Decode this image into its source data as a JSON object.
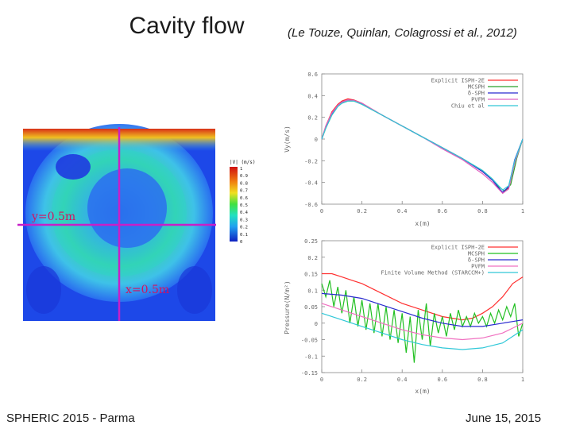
{
  "slide": {
    "title": "Cavity flow",
    "citation": "(Le Touze, Quinlan, Colagrossi et al., 2012)",
    "footer_left": "SPHERIC 2015 - Parma",
    "footer_right": "June 15, 2015"
  },
  "cavity_image": {
    "line_h_label": "y=0.5m",
    "line_v_label": "x=0.5m",
    "colorbar_title": "|V| (m/s)",
    "colorbar_ticks": [
      "1",
      "0.9",
      "0.8",
      "0.7",
      "0.6",
      "0.5",
      "0.4",
      "0.3",
      "0.2",
      "0.1",
      "0"
    ],
    "colors": {
      "line": "#c81fc8",
      "label": "#d4135f"
    }
  },
  "chart_data": [
    {
      "type": "line",
      "xlabel": "x(m)",
      "ylabel": "Vy(m/s)",
      "xlim": [
        0,
        1
      ],
      "ylim": [
        -0.6,
        0.6
      ],
      "x_ticks": [
        "0",
        "0.2",
        "0.4",
        "0.6",
        "0.8",
        "1"
      ],
      "y_ticks": [
        "0.6",
        "0.4",
        "0.2",
        "0",
        "-0.2",
        "-0.4",
        "-0.6"
      ],
      "legend_position": "top-right",
      "series": [
        {
          "name": "Explicit ISPH-2E",
          "color": "#ff3030",
          "x": [
            0,
            0.02,
            0.05,
            0.08,
            0.1,
            0.13,
            0.16,
            0.2,
            0.3,
            0.4,
            0.5,
            0.6,
            0.7,
            0.8,
            0.85,
            0.88,
            0.9,
            0.93,
            0.96,
            1
          ],
          "y": [
            0,
            0.12,
            0.25,
            0.32,
            0.35,
            0.37,
            0.36,
            0.33,
            0.22,
            0.12,
            0.02,
            -0.08,
            -0.18,
            -0.3,
            -0.38,
            -0.45,
            -0.5,
            -0.45,
            -0.2,
            0
          ]
        },
        {
          "name": "MCSPH",
          "color": "#2aa02a",
          "x": [
            0,
            0.02,
            0.05,
            0.08,
            0.1,
            0.13,
            0.16,
            0.2,
            0.3,
            0.4,
            0.5,
            0.6,
            0.7,
            0.8,
            0.85,
            0.88,
            0.91,
            0.94,
            0.97,
            1
          ],
          "y": [
            0,
            0.1,
            0.22,
            0.3,
            0.33,
            0.35,
            0.35,
            0.32,
            0.22,
            0.12,
            0.02,
            -0.08,
            -0.18,
            -0.29,
            -0.37,
            -0.44,
            -0.48,
            -0.42,
            -0.18,
            0
          ]
        },
        {
          "name": "δ-SPH",
          "color": "#2a2ad0",
          "x": [
            0,
            0.02,
            0.05,
            0.08,
            0.1,
            0.13,
            0.16,
            0.2,
            0.3,
            0.4,
            0.5,
            0.6,
            0.7,
            0.8,
            0.85,
            0.88,
            0.9,
            0.93,
            0.96,
            1
          ],
          "y": [
            0,
            0.11,
            0.23,
            0.31,
            0.34,
            0.36,
            0.355,
            0.325,
            0.22,
            0.12,
            0.02,
            -0.08,
            -0.18,
            -0.3,
            -0.38,
            -0.45,
            -0.49,
            -0.44,
            -0.19,
            0
          ]
        },
        {
          "name": "PVFM",
          "color": "#e060c0",
          "x": [
            0,
            0.02,
            0.05,
            0.08,
            0.1,
            0.13,
            0.16,
            0.2,
            0.3,
            0.4,
            0.5,
            0.6,
            0.7,
            0.8,
            0.85,
            0.88,
            0.9,
            0.93,
            0.96,
            1
          ],
          "y": [
            0,
            0.12,
            0.24,
            0.31,
            0.34,
            0.36,
            0.355,
            0.33,
            0.22,
            0.12,
            0.02,
            -0.09,
            -0.19,
            -0.32,
            -0.4,
            -0.46,
            -0.5,
            -0.46,
            -0.22,
            0
          ]
        },
        {
          "name": "Chiu et al",
          "color": "#30c8d8",
          "x": [
            0,
            0.02,
            0.05,
            0.08,
            0.1,
            0.13,
            0.16,
            0.2,
            0.3,
            0.4,
            0.5,
            0.6,
            0.7,
            0.8,
            0.85,
            0.88,
            0.9,
            0.93,
            0.96,
            1
          ],
          "y": [
            0,
            0.1,
            0.22,
            0.3,
            0.33,
            0.35,
            0.35,
            0.32,
            0.22,
            0.12,
            0.02,
            -0.08,
            -0.18,
            -0.29,
            -0.37,
            -0.43,
            -0.47,
            -0.43,
            -0.2,
            0
          ]
        }
      ]
    },
    {
      "type": "line",
      "xlabel": "x(m)",
      "ylabel": "Pressure(N/m²)",
      "xlim": [
        0,
        1
      ],
      "ylim": [
        -0.15,
        0.25
      ],
      "x_ticks": [
        "0",
        "0.2",
        "0.4",
        "0.6",
        "0.8",
        "1"
      ],
      "y_ticks": [
        "0.25",
        "0.2",
        "0.15",
        "0.1",
        "0.05",
        "0",
        "-0.05",
        "-0.1",
        "-0.15"
      ],
      "legend_position": "top-right",
      "series": [
        {
          "name": "Explicit ISPH-2E",
          "color": "#ff3030",
          "x": [
            0,
            0.05,
            0.1,
            0.15,
            0.2,
            0.3,
            0.4,
            0.5,
            0.6,
            0.7,
            0.75,
            0.8,
            0.85,
            0.9,
            0.95,
            1
          ],
          "y": [
            0.15,
            0.15,
            0.14,
            0.13,
            0.12,
            0.09,
            0.06,
            0.04,
            0.02,
            0.01,
            0.015,
            0.03,
            0.05,
            0.08,
            0.12,
            0.14
          ]
        },
        {
          "name": "MCSPH",
          "color": "#22c022",
          "x": [
            0,
            0.02,
            0.04,
            0.06,
            0.08,
            0.1,
            0.12,
            0.14,
            0.16,
            0.18,
            0.2,
            0.22,
            0.24,
            0.26,
            0.28,
            0.3,
            0.32,
            0.34,
            0.36,
            0.38,
            0.4,
            0.42,
            0.44,
            0.46,
            0.48,
            0.5,
            0.52,
            0.54,
            0.56,
            0.58,
            0.6,
            0.62,
            0.64,
            0.66,
            0.68,
            0.7,
            0.72,
            0.74,
            0.76,
            0.78,
            0.8,
            0.82,
            0.84,
            0.86,
            0.88,
            0.9,
            0.92,
            0.94,
            0.96,
            0.98,
            1
          ],
          "y": [
            0.12,
            0.08,
            0.13,
            0.05,
            0.11,
            0.03,
            0.1,
            0.0,
            0.08,
            -0.01,
            0.07,
            -0.02,
            0.06,
            -0.03,
            0.06,
            -0.04,
            0.05,
            -0.05,
            0.04,
            -0.06,
            0.03,
            -0.09,
            0.02,
            -0.12,
            0.04,
            -0.05,
            0.06,
            -0.07,
            0.03,
            -0.03,
            0.02,
            -0.04,
            0.03,
            -0.02,
            0.04,
            -0.01,
            0.02,
            -0.01,
            0.03,
            0.0,
            0.02,
            -0.01,
            0.03,
            0.0,
            0.04,
            0.01,
            0.05,
            0.02,
            0.06,
            -0.04,
            0.0
          ]
        },
        {
          "name": "δ-SPH",
          "color": "#2a2ad0",
          "x": [
            0,
            0.1,
            0.2,
            0.3,
            0.4,
            0.5,
            0.6,
            0.7,
            0.8,
            0.9,
            0.95,
            1
          ],
          "y": [
            0.09,
            0.085,
            0.075,
            0.055,
            0.035,
            0.015,
            0.0,
            -0.01,
            -0.01,
            0.0,
            0.005,
            0.01
          ]
        },
        {
          "name": "PVFM",
          "color": "#f070c0",
          "x": [
            0,
            0.1,
            0.2,
            0.3,
            0.4,
            0.5,
            0.6,
            0.7,
            0.8,
            0.9,
            0.95,
            1
          ],
          "y": [
            0.06,
            0.04,
            0.02,
            0.0,
            -0.02,
            -0.035,
            -0.045,
            -0.05,
            -0.045,
            -0.03,
            -0.015,
            0.0
          ]
        },
        {
          "name": "Finite Volume Method (STARCCM+)",
          "color": "#30c8d8",
          "x": [
            0,
            0.1,
            0.2,
            0.3,
            0.4,
            0.5,
            0.6,
            0.7,
            0.8,
            0.9,
            0.95,
            1
          ],
          "y": [
            0.03,
            0.01,
            -0.01,
            -0.03,
            -0.05,
            -0.065,
            -0.075,
            -0.08,
            -0.075,
            -0.06,
            -0.04,
            -0.02
          ]
        }
      ]
    }
  ]
}
